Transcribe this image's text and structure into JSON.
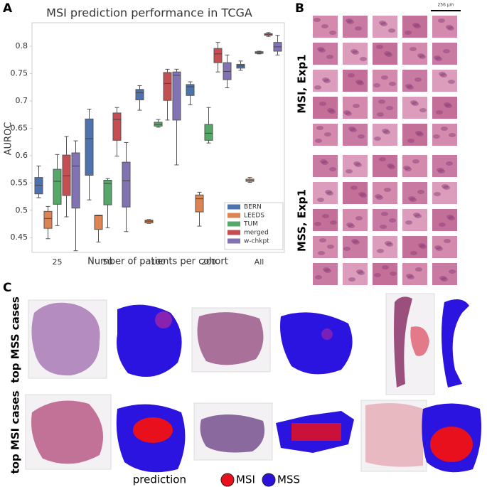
{
  "chart_data": {
    "type": "box",
    "title": "MSI prediction performance in TCGA",
    "x_label": "Number of patients per cohort",
    "y_label": "AUROC",
    "categories": [
      "25",
      "50",
      "100",
      "200",
      "All"
    ],
    "ylim": [
      0.423,
      0.843
    ],
    "yticks": [
      0.45,
      0.5,
      0.55,
      0.6,
      0.65,
      0.7,
      0.75,
      0.8
    ],
    "grid": false,
    "legend": "lower right",
    "series": [
      {
        "name": "BERN",
        "color": "#4c72b0",
        "values": [
          {
            "whislo": 0.523,
            "q1": 0.53,
            "med": 0.546,
            "q3": 0.56,
            "whishi": 0.581
          },
          {
            "whislo": 0.519,
            "q1": 0.564,
            "med": 0.631,
            "q3": 0.667,
            "whishi": 0.685
          },
          {
            "whislo": 0.683,
            "q1": 0.702,
            "med": 0.715,
            "q3": 0.721,
            "whishi": 0.728
          },
          {
            "whislo": 0.693,
            "q1": 0.71,
            "med": 0.726,
            "q3": 0.73,
            "whishi": 0.735
          },
          {
            "whislo": 0.756,
            "q1": 0.76,
            "med": 0.764,
            "q3": 0.767,
            "whishi": 0.773
          }
        ]
      },
      {
        "name": "LEEDS",
        "color": "#dd8452",
        "values": [
          {
            "whislo": 0.448,
            "q1": 0.467,
            "med": 0.485,
            "q3": 0.498,
            "whishi": 0.507
          },
          {
            "whislo": 0.442,
            "q1": 0.465,
            "med": 0.49,
            "q3": 0.491,
            "whishi": 0.491
          },
          {
            "whislo": 0.476,
            "q1": 0.477,
            "med": 0.48,
            "q3": 0.482,
            "whishi": 0.483
          },
          {
            "whislo": 0.471,
            "q1": 0.497,
            "med": 0.521,
            "q3": 0.528,
            "whishi": 0.533
          },
          {
            "whislo": 0.551,
            "q1": 0.553,
            "med": 0.554,
            "q3": 0.557,
            "whishi": 0.56
          }
        ]
      },
      {
        "name": "TUM",
        "color": "#55a868",
        "values": [
          {
            "whislo": 0.472,
            "q1": 0.511,
            "med": 0.553,
            "q3": 0.575,
            "whishi": 0.602
          },
          {
            "whislo": 0.468,
            "q1": 0.51,
            "med": 0.549,
            "q3": 0.555,
            "whishi": 0.558
          },
          {
            "whislo": 0.652,
            "q1": 0.654,
            "med": 0.657,
            "q3": 0.661,
            "whishi": 0.666
          },
          {
            "whislo": 0.623,
            "q1": 0.628,
            "med": 0.641,
            "q3": 0.657,
            "whishi": 0.688
          },
          {
            "whislo": 0.786,
            "q1": 0.787,
            "med": 0.788,
            "q3": 0.79,
            "whishi": 0.791
          }
        ]
      },
      {
        "name": "merged",
        "color": "#c44e52",
        "values": [
          {
            "whislo": 0.488,
            "q1": 0.527,
            "med": 0.563,
            "q3": 0.601,
            "whishi": 0.635
          },
          {
            "whislo": 0.599,
            "q1": 0.628,
            "med": 0.666,
            "q3": 0.678,
            "whishi": 0.688
          },
          {
            "whislo": 0.665,
            "q1": 0.701,
            "med": 0.732,
            "q3": 0.752,
            "whishi": 0.758
          },
          {
            "whislo": 0.753,
            "q1": 0.77,
            "med": 0.786,
            "q3": 0.796,
            "whishi": 0.807
          },
          {
            "whislo": 0.818,
            "q1": 0.82,
            "med": 0.822,
            "q3": 0.823,
            "whishi": 0.825
          }
        ]
      },
      {
        "name": "w-chkpt",
        "color": "#8172b3",
        "values": [
          {
            "whislo": 0.426,
            "q1": 0.504,
            "med": 0.581,
            "q3": 0.605,
            "whishi": 0.627
          },
          {
            "whislo": 0.461,
            "q1": 0.506,
            "med": 0.554,
            "q3": 0.588,
            "whishi": 0.624
          },
          {
            "whislo": 0.583,
            "q1": 0.665,
            "med": 0.747,
            "q3": 0.753,
            "whishi": 0.758
          },
          {
            "whislo": 0.724,
            "q1": 0.739,
            "med": 0.754,
            "q3": 0.77,
            "whishi": 0.784
          },
          {
            "whislo": 0.784,
            "q1": 0.791,
            "med": 0.799,
            "q3": 0.807,
            "whishi": 0.82
          }
        ]
      }
    ]
  },
  "panels": {
    "a": "A",
    "b": "B",
    "c": "C"
  },
  "panel_b": {
    "scale_bar": "256 µm",
    "rows": [
      "MSI, Exp1",
      "MSS, Exp1"
    ]
  },
  "panel_c": {
    "rows": [
      "top MSS cases",
      "top MSI cases"
    ],
    "legend_title": "prediction",
    "legend": [
      {
        "name": "MSI",
        "color": "#e8101c"
      },
      {
        "name": "MSS",
        "color": "#2a12d8"
      }
    ]
  }
}
